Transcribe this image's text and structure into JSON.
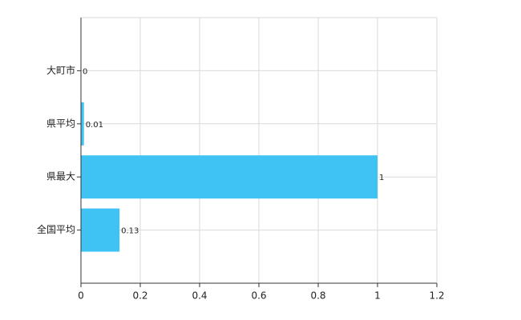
{
  "chart_data": {
    "type": "bar",
    "orientation": "horizontal",
    "categories": [
      "大町市",
      "県平均",
      "県最大",
      "全国平均"
    ],
    "values": [
      0,
      0.01,
      1,
      0.13
    ],
    "color": "#3fc3f5",
    "xlim": [
      0,
      1.2
    ],
    "xticks": [
      0,
      0.2,
      0.4,
      0.6,
      0.8,
      1,
      1.2
    ],
    "grid": true
  }
}
